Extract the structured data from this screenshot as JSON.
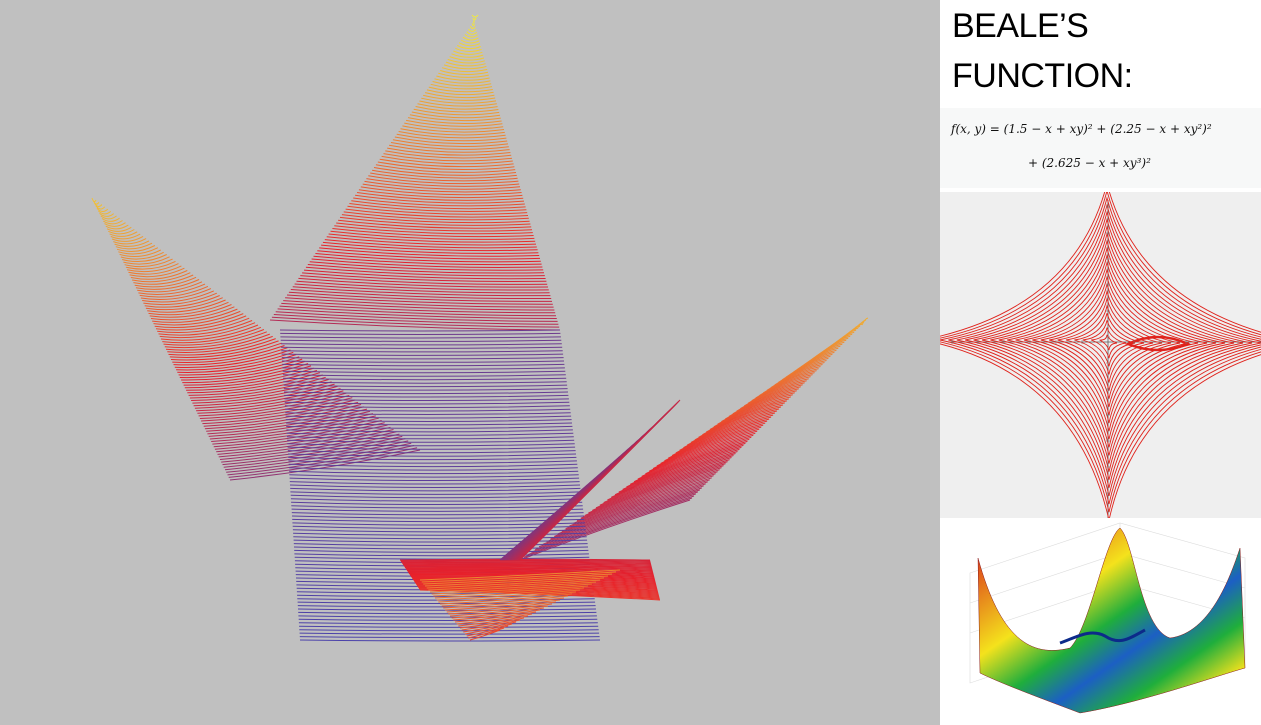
{
  "side": {
    "title_line1": "BEALE’S",
    "title_line2": "FUNCTION:",
    "formula_line1": "f(x, y) = (1.5 − x + xy)² + (2.25 − x + xy²)²",
    "formula_line2": "+ (2.625 − x + xy³)²"
  },
  "colors": {
    "background_main": "#c0c0c0",
    "low": "#3a46b8",
    "mid": "#e8202a",
    "high": "#f2ea3a"
  }
}
